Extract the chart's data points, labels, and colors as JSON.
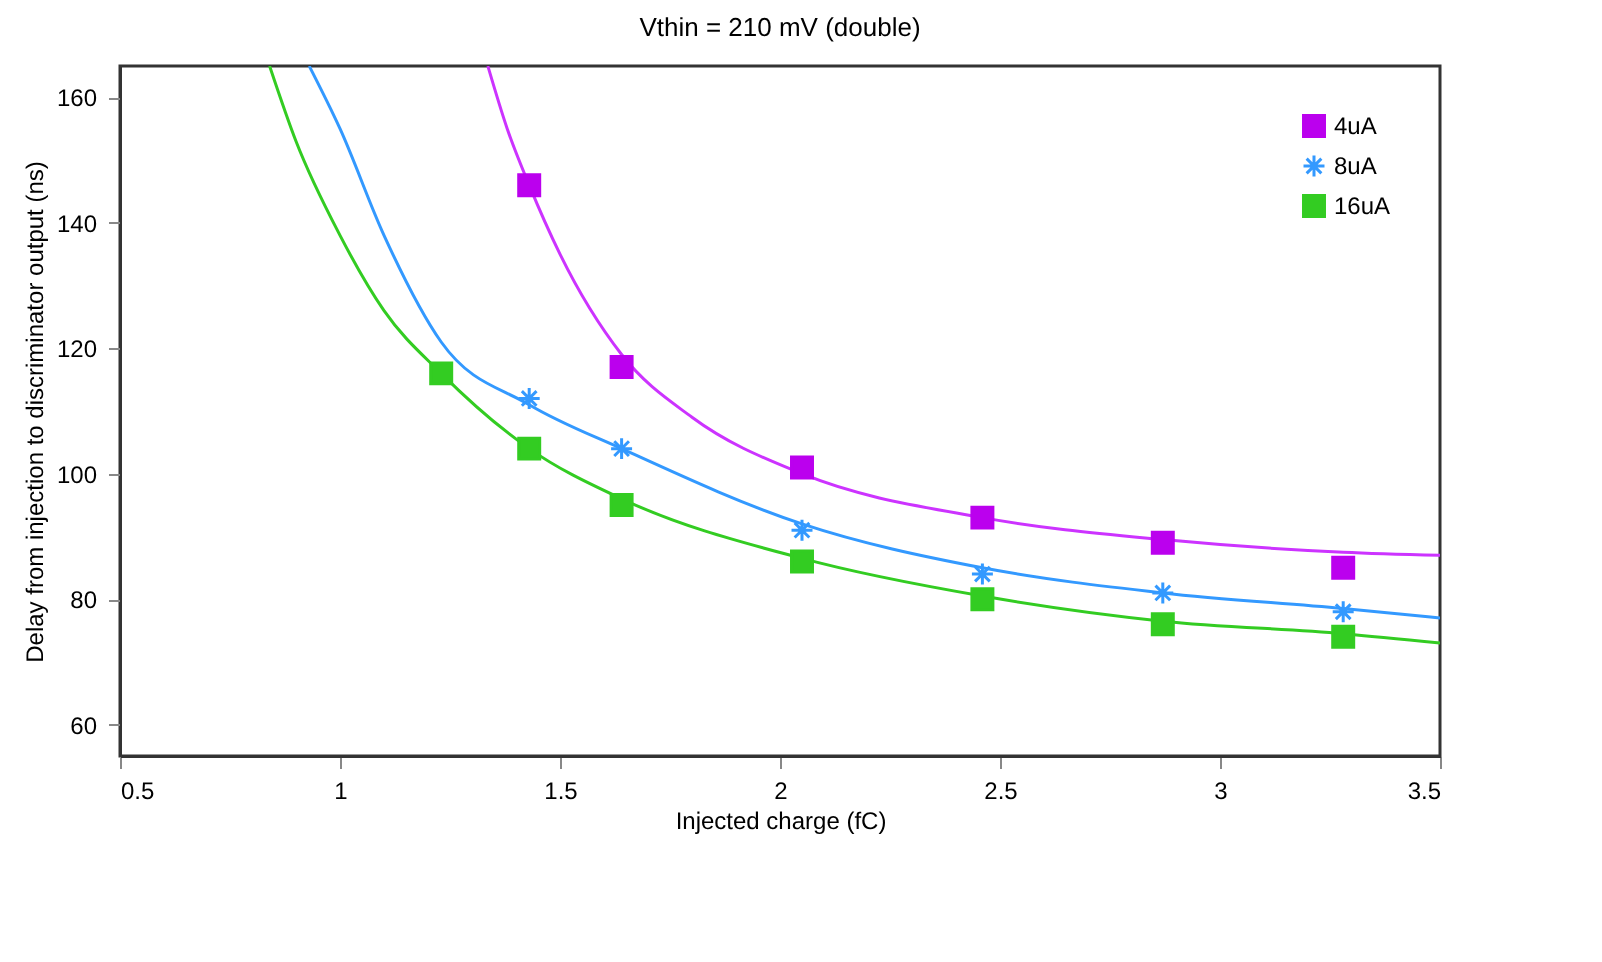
{
  "chart_data": {
    "type": "scatter",
    "title": "Vthin = 210 mV (double)",
    "xlabel": "Injected charge (fC)",
    "ylabel": "Delay from injection to discriminator output (ns)",
    "xlim": [
      0.5,
      3.5
    ],
    "ylim": [
      55,
      165
    ],
    "xticks": [
      0.5,
      1,
      1.5,
      2,
      2.5,
      3,
      3.5
    ],
    "yticks": [
      60,
      80,
      100,
      120,
      140,
      160
    ],
    "grid": false,
    "legend": "top right",
    "series": [
      {
        "type": "line",
        "color": "#cc33ff",
        "marker": "none",
        "x": [
          1.336,
          1.38,
          1.43,
          1.5,
          1.64,
          1.8,
          2.05,
          2.46,
          2.87,
          3.28,
          3.5
        ],
        "values": [
          165,
          155,
          146,
          135,
          119,
          109,
          100,
          93,
          89.5,
          87.5,
          87
        ]
      },
      {
        "type": "line",
        "color": "#3399ff",
        "marker": "none",
        "x": [
          0.93,
          1.0,
          1.1,
          1.23,
          1.43,
          1.64,
          2.05,
          2.46,
          2.87,
          3.28,
          3.5
        ],
        "values": [
          165,
          155,
          138,
          121,
          111,
          104,
          92,
          85,
          81,
          78.5,
          77
        ]
      },
      {
        "type": "line",
        "color": "#33cc22",
        "marker": "none",
        "x": [
          0.84,
          0.9,
          1.0,
          1.1,
          1.23,
          1.43,
          1.64,
          2.05,
          2.46,
          2.87,
          3.28,
          3.5
        ],
        "values": [
          165,
          153,
          138,
          126,
          116,
          104,
          96,
          86.5,
          80.5,
          76.5,
          74.5,
          73
        ]
      },
      {
        "type": "scatter",
        "name": "4uA",
        "color": "#bb00ee",
        "marker": "square",
        "x": [
          1.43,
          1.64,
          2.05,
          2.46,
          2.87,
          3.28
        ],
        "values": [
          146,
          117,
          101,
          93,
          89,
          85
        ]
      },
      {
        "type": "scatter",
        "name": "8uA",
        "color": "#3399ff",
        "marker": "cross",
        "x": [
          1.43,
          1.64,
          2.05,
          2.46,
          2.87,
          3.28
        ],
        "values": [
          112,
          104,
          91,
          84,
          81,
          78
        ]
      },
      {
        "type": "scatter",
        "name": "16uA",
        "color": "#33cc22",
        "marker": "square",
        "x": [
          1.23,
          1.43,
          1.64,
          2.05,
          2.46,
          2.87,
          3.28
        ],
        "values": [
          116,
          104,
          95,
          86,
          80,
          76,
          74
        ]
      }
    ]
  }
}
